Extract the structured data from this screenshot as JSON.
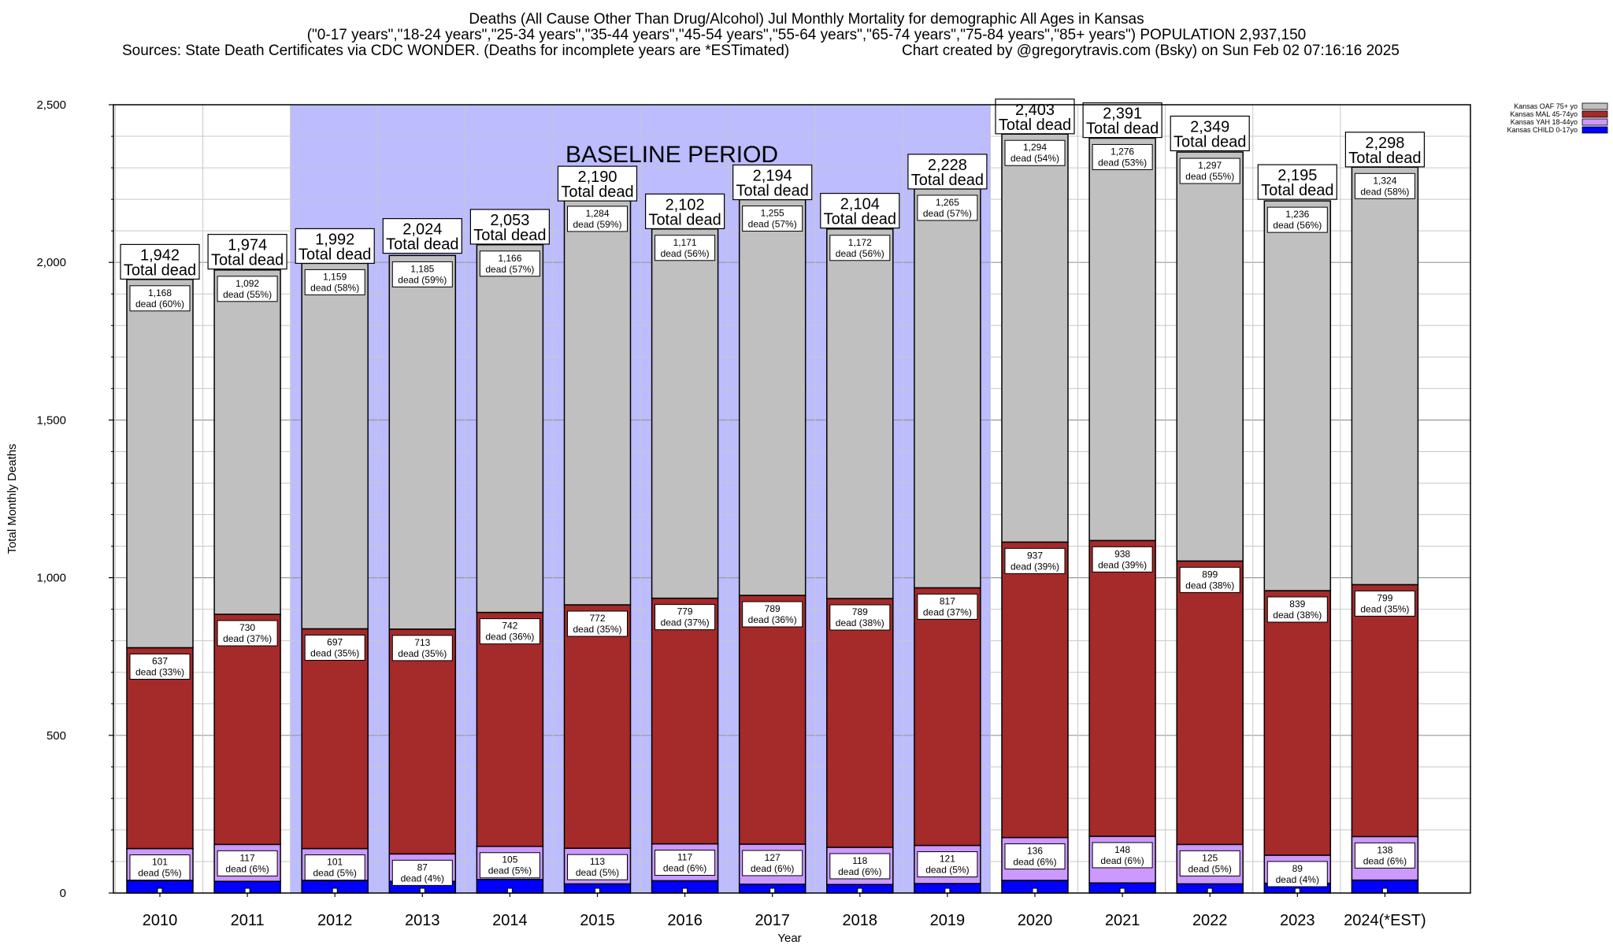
{
  "title": {
    "line1": "Deaths (All Cause Other Than Drug/Alcohol) Jul Monthly Mortality for demographic All Ages in Kansas",
    "line2": "(\"0-17 years\",\"18-24 years\",\"25-34 years\",\"35-44 years\",\"45-54 years\",\"55-64 years\",\"65-74 years\",\"75-84 years\",\"85+ years\") POPULATION 2,937,150",
    "sources": "Sources: State Death Certificates via CDC WONDER. (Deaths for incomplete years are *ESTimated)",
    "credit": "Chart created by @gregorytravis.com (Bsky) on Sun Feb 02 07:16:16 2025"
  },
  "chart_data": {
    "type": "bar",
    "stacked": true,
    "xlabel": "Year",
    "ylabel": "Total Monthly Deaths",
    "ylim": [
      0,
      2500
    ],
    "yticks": [
      0,
      500,
      1000,
      1500,
      2000,
      2500
    ],
    "ytick_labels": [
      "0",
      "500",
      "1,000",
      "1,500",
      "2,000",
      "2,500"
    ],
    "grid": true,
    "legend_position": "top-right",
    "categories": [
      "2010",
      "2011",
      "2012",
      "2013",
      "2014",
      "2015",
      "2016",
      "2017",
      "2018",
      "2019",
      "2020",
      "2021",
      "2022",
      "2023",
      "2024(*EST)"
    ],
    "baseline": {
      "label": "BASELINE PERIOD",
      "from": "2012",
      "to": "2019",
      "color": "#bcbcff"
    },
    "totals": [
      1942,
      1974,
      1992,
      2024,
      2053,
      2190,
      2102,
      2194,
      2104,
      2228,
      2403,
      2391,
      2349,
      2195,
      2298
    ],
    "totals_text": [
      "1,942",
      "1,974",
      "1,992",
      "2,024",
      "2,053",
      "2,190",
      "2,102",
      "2,194",
      "2,104",
      "2,228",
      "2,403",
      "2,391",
      "2,349",
      "2,195",
      "2,298"
    ],
    "total_suffix": "Total dead",
    "series": [
      {
        "name": "Kansas CHILD 0-17yo",
        "color": "#0000ff",
        "values": [
          40,
          37,
          40,
          37,
          43,
          29,
          39,
          28,
          27,
          30,
          40,
          32,
          29,
          31,
          41
        ]
      },
      {
        "name": "Kansas YAH 18-44yo",
        "color": "#cc99ff",
        "values": [
          101,
          117,
          101,
          87,
          105,
          113,
          117,
          127,
          118,
          121,
          136,
          148,
          125,
          89,
          138
        ],
        "labels": [
          "101",
          "117",
          "101",
          "87",
          "105",
          "113",
          "117",
          "127",
          "118",
          "121",
          "136",
          "148",
          "125",
          "89",
          "138"
        ],
        "pcts": [
          "dead (5%)",
          "dead (6%)",
          "dead (5%)",
          "dead (4%)",
          "dead (5%)",
          "dead (5%)",
          "dead (6%)",
          "dead (6%)",
          "dead (6%)",
          "dead (5%)",
          "dead (6%)",
          "dead (6%)",
          "dead (5%)",
          "dead (4%)",
          "dead (6%)"
        ]
      },
      {
        "name": "Kansas MAL 45-74yo",
        "color": "#a52a2a",
        "values": [
          637,
          730,
          697,
          713,
          742,
          772,
          779,
          789,
          789,
          817,
          937,
          938,
          899,
          839,
          799
        ],
        "labels": [
          "637",
          "730",
          "697",
          "713",
          "742",
          "772",
          "779",
          "789",
          "789",
          "817",
          "937",
          "938",
          "899",
          "839",
          "799"
        ],
        "pcts": [
          "dead (33%)",
          "dead (37%)",
          "dead (35%)",
          "dead (35%)",
          "dead (36%)",
          "dead (35%)",
          "dead (37%)",
          "dead (36%)",
          "dead (38%)",
          "dead (37%)",
          "dead (39%)",
          "dead (39%)",
          "dead (38%)",
          "dead (38%)",
          "dead (35%)"
        ]
      },
      {
        "name": "Kansas OAF 75+ yo",
        "color": "#c0c0c0",
        "values": [
          1168,
          1092,
          1159,
          1185,
          1166,
          1284,
          1171,
          1255,
          1172,
          1265,
          1294,
          1276,
          1297,
          1236,
          1324
        ],
        "labels": [
          "1,168",
          "1,092",
          "1,159",
          "1,185",
          "1,166",
          "1,284",
          "1,171",
          "1,255",
          "1,172",
          "1,265",
          "1,294",
          "1,276",
          "1,297",
          "1,236",
          "1,324"
        ],
        "pcts": [
          "dead (60%)",
          "dead (55%)",
          "dead (58%)",
          "dead (59%)",
          "dead (57%)",
          "dead (59%)",
          "dead (56%)",
          "dead (57%)",
          "dead (56%)",
          "dead (57%)",
          "dead (54%)",
          "dead (53%)",
          "dead (55%)",
          "dead (56%)",
          "dead (58%)"
        ]
      }
    ],
    "legend": [
      "Kansas OAF 75+ yo",
      "Kansas MAL 45-74yo",
      "Kansas YAH 18-44yo",
      "Kansas CHILD 0-17yo"
    ]
  }
}
